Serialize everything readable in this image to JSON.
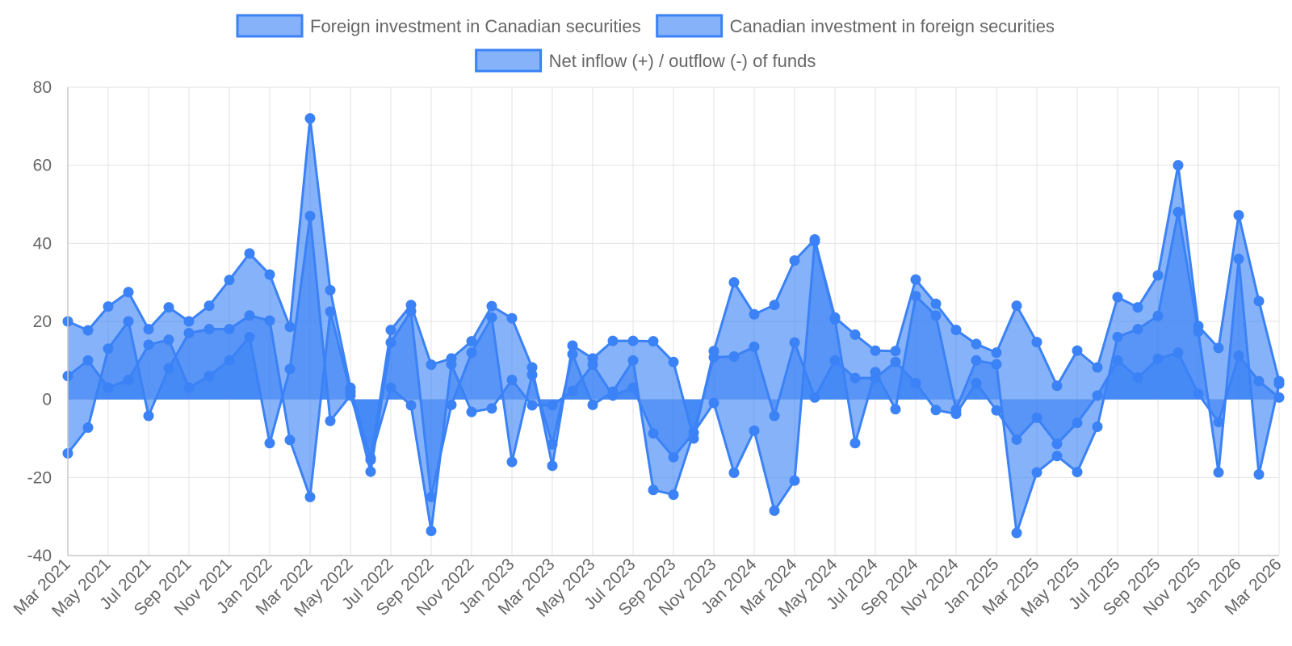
{
  "chart_data": {
    "type": "area",
    "legend_position": "top",
    "grid": true,
    "ylim": [
      -40,
      80
    ],
    "yticks": [
      -40,
      -20,
      0,
      20,
      40,
      60,
      80
    ],
    "xticks": [
      "Mar 2021",
      "May 2021",
      "Jul 2021",
      "Sep 2021",
      "Nov 2021",
      "Jan 2022",
      "Mar 2022",
      "May 2022",
      "Jul 2022",
      "Sep 2022",
      "Nov 2022",
      "Jan 2023",
      "Mar 2023",
      "May 2023",
      "Jul 2023",
      "Sep 2023",
      "Nov 2023",
      "Jan 2024",
      "Mar 2024",
      "May 2024",
      "Jul 2024",
      "Sep 2024",
      "Nov 2024",
      "Jan 2025",
      "Mar 2025",
      "May 2025",
      "Jul 2025",
      "Sep 2025",
      "Nov 2025",
      "Jan 2026",
      "Mar 2026"
    ],
    "x": [
      "Mar 2021",
      "Apr 2021",
      "May 2021",
      "Jun 2021",
      "Jul 2021",
      "Aug 2021",
      "Sep 2021",
      "Oct 2021",
      "Nov 2021",
      "Dec 2021",
      "Jan 2022",
      "Feb 2022",
      "Mar 2022",
      "Apr 2022",
      "May 2022",
      "Jun 2022",
      "Jul 2022",
      "Aug 2022",
      "Sep 2022",
      "Oct 2022",
      "Nov 2022",
      "Dec 2022",
      "Jan 2023",
      "Feb 2023",
      "Mar 2023",
      "Apr 2023",
      "May 2023",
      "Jun 2023",
      "Jul 2023",
      "Aug 2023",
      "Sep 2023",
      "Oct 2023",
      "Nov 2023",
      "Dec 2023",
      "Jan 2024",
      "Feb 2024",
      "Mar 2024",
      "Apr 2024",
      "May 2024",
      "Jun 2024",
      "Jul 2024",
      "Aug 2024",
      "Sep 2024",
      "Oct 2024",
      "Nov 2024",
      "Dec 2024",
      "Jan 2025",
      "Feb 2025",
      "Mar 2025",
      "Apr 2025",
      "May 2025",
      "Jun 2025",
      "Jul 2025",
      "Aug 2025",
      "Sep 2025",
      "Oct 2025",
      "Nov 2025",
      "Dec 2025",
      "Jan 2026",
      "Feb 2026",
      "Mar 2026"
    ],
    "series": [
      {
        "name": "Foreign investment in Canadian securities",
        "color": "#3b82f6",
        "values": [
          20,
          17.7,
          23.8,
          27.5,
          18,
          23.6,
          20,
          24,
          30.6,
          37.4,
          32,
          18.6,
          72,
          28,
          3,
          -15.5,
          17.8,
          24.2,
          8.9,
          10.5,
          14.9,
          23.9,
          20.8,
          8.2,
          -17,
          13.8,
          10.5,
          15,
          15,
          14.9,
          9.6,
          -10,
          12.4,
          30,
          21.8,
          24.2,
          35.6,
          41,
          21,
          16.6,
          12.5,
          12.4,
          30.7,
          24.5,
          17.8,
          14.2,
          12,
          24,
          14.7,
          3.5,
          12.5,
          8.2,
          26.2,
          23.6,
          31.8,
          60,
          18.8,
          13.2,
          47.2,
          25.2,
          4.7
        ]
      },
      {
        "name": "Canadian investment in foreign securities",
        "color": "#3b82f6",
        "values": [
          -13.8,
          -7.2,
          13,
          20,
          -4.2,
          8,
          17,
          18,
          18,
          21.5,
          20.2,
          -10.4,
          -25,
          22.5,
          2,
          -18.5,
          14.6,
          22.6,
          -25,
          -1.4,
          12,
          21,
          -16,
          6.3,
          -11.5,
          11.6,
          -1.4,
          2,
          10,
          -23.2,
          -24.4,
          -8.5,
          -0.9,
          -18.8,
          -8,
          -28.5,
          -20.8,
          40.5,
          20.5,
          -11.2,
          7,
          -2.5,
          26.5,
          21.5,
          -2.6,
          10,
          9,
          -34.2,
          -18.7,
          -14.5,
          -18.6,
          -7,
          16,
          18,
          21.4,
          48,
          17.4,
          -18.7,
          36,
          -19.2,
          4
        ]
      },
      {
        "name": "Net inflow (+) / outflow (-) of funds",
        "color": "#3b82f6",
        "values": [
          6,
          10,
          3,
          5,
          14,
          15.3,
          3,
          6,
          10,
          16,
          -11.2,
          7.8,
          47,
          -5.5,
          1,
          -15,
          3,
          -1.5,
          -33.7,
          9,
          -3.2,
          -2.3,
          5,
          -1.5,
          -1.5,
          2.2,
          8.9,
          1,
          3,
          -8.7,
          -14.8,
          -8.5,
          10.8,
          11,
          13.5,
          -4.2,
          14.6,
          0.5,
          10,
          5.5,
          5.5,
          9.6,
          4.2,
          -2.7,
          -3.7,
          4.2,
          -2.8,
          -10.3,
          -4.7,
          -11.4,
          -6,
          1,
          10,
          5.6,
          10.4,
          12,
          1.4,
          -5.8,
          11.2,
          4.7,
          0.5
        ]
      }
    ]
  }
}
